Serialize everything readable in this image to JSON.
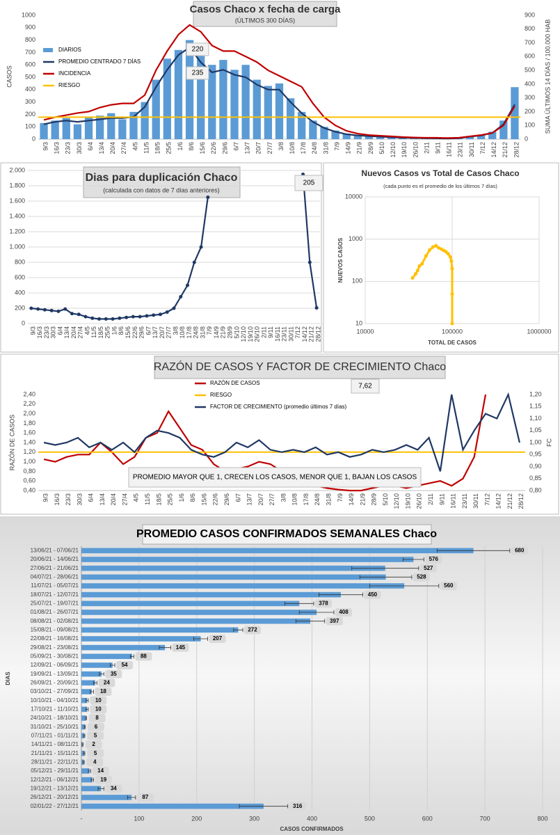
{
  "chart_data": [
    {
      "type": "bar",
      "title": "Casos  Chaco  x fecha de carga",
      "subtitle": "(ÚLTIMOS 300 DÍAS)",
      "y_label": "CASOS",
      "y2_label": "SUMA  ÚLTIMOS 14 DÍAS / 100.000 HAB",
      "categories": [
        "9/3",
        "16/3",
        "23/3",
        "30/3",
        "6/4",
        "13/4",
        "20/4",
        "27/4",
        "4/5",
        "11/5",
        "18/5",
        "25/5",
        "1/6",
        "8/6",
        "15/6",
        "22/6",
        "29/6",
        "6/7",
        "13/7",
        "20/7",
        "27/7",
        "3/8",
        "10/8",
        "17/8",
        "24/8",
        "31/8",
        "7/9",
        "14/9",
        "21/9",
        "28/9",
        "5/10",
        "12/10",
        "19/10",
        "26/10",
        "2/11",
        "9/11",
        "16/11",
        "23/11",
        "30/11",
        "7/12",
        "14/12",
        "21/12",
        "28/12"
      ],
      "series": [
        {
          "name": "DIARIOS",
          "color": "#5b9bd5",
          "type": "bar",
          "values": [
            130,
            150,
            170,
            120,
            180,
            190,
            210,
            160,
            220,
            300,
            480,
            650,
            720,
            800,
            680,
            600,
            640,
            560,
            600,
            480,
            430,
            450,
            330,
            220,
            150,
            100,
            70,
            45,
            35,
            28,
            22,
            18,
            14,
            12,
            9,
            7,
            6,
            10,
            25,
            35,
            60,
            150,
            420
          ]
        },
        {
          "name": "PROMEDIO CENTRADO 7 DÍAS",
          "color": "#1f3864",
          "type": "line",
          "values": [
            120,
            140,
            150,
            140,
            150,
            160,
            170,
            170,
            180,
            260,
            420,
            560,
            680,
            740,
            620,
            540,
            560,
            520,
            500,
            440,
            400,
            400,
            300,
            210,
            140,
            90,
            60,
            40,
            30,
            25,
            20,
            15,
            12,
            10,
            8,
            6,
            5,
            8,
            20,
            30,
            50,
            120,
            280
          ]
        },
        {
          "name": "INCIDENCIA",
          "color": "#c00000",
          "type": "line",
          "axis": "y2",
          "values": [
            140,
            160,
            175,
            190,
            200,
            230,
            250,
            260,
            260,
            320,
            500,
            640,
            760,
            830,
            780,
            680,
            640,
            640,
            600,
            560,
            500,
            460,
            420,
            380,
            260,
            160,
            100,
            60,
            40,
            30,
            25,
            20,
            15,
            12,
            10,
            10,
            8,
            10,
            20,
            30,
            45,
            100,
            240
          ]
        },
        {
          "name": "RIESGO",
          "color": "#ffc000",
          "type": "hline",
          "axis": "y2",
          "value": 160
        }
      ],
      "annotations": [
        "220",
        "235"
      ],
      "ylim": [
        0,
        1000
      ],
      "yticks": [
        0,
        100,
        200,
        300,
        400,
        500,
        600,
        700,
        800,
        900,
        1000
      ],
      "y2lim": [
        0,
        900
      ],
      "y2ticks": [
        0,
        100,
        200,
        300,
        400,
        500,
        600,
        700,
        800,
        900
      ],
      "grid": false
    },
    {
      "type": "line",
      "title": "Dias para duplicación Chaco",
      "subtitle": "(calculada con datos de 7 días anteriores)",
      "categories": [
        "9/3",
        "16/3",
        "23/3",
        "30/3",
        "6/4",
        "13/4",
        "20/4",
        "27/4",
        "4/5",
        "11/5",
        "18/5",
        "25/5",
        "1/6",
        "8/6",
        "15/6",
        "22/6",
        "29/6",
        "6/7",
        "13/7",
        "20/7",
        "27/7",
        "3/8",
        "10/8",
        "17/8",
        "24/8",
        "31/8",
        "7/9",
        "14/9",
        "21/9",
        "28/9",
        "5/10",
        "12/10",
        "19/10",
        "26/10",
        "2/11",
        "9/11",
        "16/11",
        "23/11",
        "30/11",
        "7/12",
        "14/12",
        "21/12",
        "28/12"
      ],
      "series": [
        {
          "color": "#1f3864",
          "type": "line",
          "markers": true,
          "values": [
            200,
            190,
            180,
            170,
            160,
            190,
            130,
            120,
            90,
            70,
            60,
            60,
            60,
            70,
            80,
            90,
            90,
            100,
            110,
            120,
            150,
            200,
            350,
            500,
            800,
            1000,
            1650,
            null,
            null,
            null,
            null,
            null,
            null,
            null,
            null,
            null,
            null,
            null,
            null,
            null,
            1950,
            800,
            205
          ]
        }
      ],
      "annotations": [
        "205"
      ],
      "ylim": [
        0,
        2000
      ],
      "yticks": [
        0,
        200,
        400,
        600,
        800,
        {
          "value": 1000,
          "label": "1.000"
        },
        {
          "value": 1200,
          "label": "1.200"
        },
        {
          "value": 1400,
          "label": "1.400"
        },
        {
          "value": 1600,
          "label": "1.600"
        },
        {
          "value": 1800,
          "label": "1.800"
        },
        {
          "value": 2000,
          "label": "2.000"
        }
      ],
      "grid": true
    },
    {
      "type": "scatter",
      "title": "Nuevos Casos vs Total de Casos Chaco",
      "subtitle": "(cada punto es el promedio de los últimos 7 días)",
      "x_label": "TOTAL DE CASOS",
      "y_label": "NUEVOS  CASOS",
      "x": [
        35000,
        38000,
        40000,
        42000,
        45000,
        50000,
        55000,
        60000,
        65000,
        70000,
        75000,
        80000,
        85000,
        90000,
        95000,
        98000,
        100000,
        100000,
        100000
      ],
      "values": [
        120,
        150,
        180,
        230,
        260,
        400,
        550,
        650,
        700,
        620,
        580,
        540,
        500,
        450,
        380,
        300,
        200,
        50,
        10
      ],
      "color": "#ffc000",
      "log_x": true,
      "log_y": true,
      "xlim": [
        10000,
        1000000
      ],
      "xticks": [
        10000,
        100000,
        1000000
      ],
      "ylim": [
        10,
        10000
      ],
      "yticks": [
        10,
        100,
        1000,
        10000
      ],
      "grid": true
    },
    {
      "type": "line",
      "title": "RAZÓN DE CASOS Y FACTOR DE CRECIMIENTO Chaco",
      "y_label": "RAZÓN DE CASOS",
      "y2_label": "FC",
      "categories": [
        "9/3",
        "16/3",
        "23/3",
        "30/3",
        "6/4",
        "13/4",
        "20/4",
        "27/4",
        "4/5",
        "11/5",
        "18/5",
        "25/5",
        "1/6",
        "8/6",
        "15/6",
        "22/6",
        "29/6",
        "6/7",
        "13/7",
        "20/7",
        "27/7",
        "3/8",
        "10/8",
        "17/8",
        "24/8",
        "31/8",
        "7/9",
        "14/9",
        "21/9",
        "28/9",
        "5/10",
        "12/10",
        "19/10",
        "26/10",
        "2/11",
        "9/11",
        "16/11",
        "23/11",
        "30/11",
        "7/12",
        "14/12",
        "21/12",
        "28/12"
      ],
      "series": [
        {
          "name": "RAZÓN DE CASOS",
          "color": "#c00000",
          "type": "line",
          "values": [
            1.05,
            1.0,
            1.1,
            1.15,
            1.15,
            1.4,
            1.2,
            0.95,
            1.1,
            1.5,
            1.6,
            2.05,
            1.7,
            1.35,
            1.25,
            0.95,
            0.8,
            0.85,
            0.9,
            1.0,
            0.95,
            0.8,
            0.75,
            0.55,
            0.5,
            0.45,
            0.42,
            0.4,
            0.4,
            0.45,
            0.5,
            0.5,
            0.45,
            0.5,
            0.55,
            0.6,
            0.5,
            0.65,
            1.1,
            2.4,
            null,
            null,
            null
          ]
        },
        {
          "name": "RIESGO",
          "color": "#ffc000",
          "type": "hline",
          "value": 1.2
        },
        {
          "name": "FACTOR DE CRECIMIENTO (promedio últimos 7 días)",
          "color": "#1f3864",
          "type": "line",
          "axis": "y2",
          "values": [
            1.0,
            0.99,
            1.0,
            1.02,
            0.98,
            1.0,
            0.97,
            1.0,
            0.96,
            1.02,
            1.05,
            1.04,
            1.02,
            0.97,
            0.95,
            0.94,
            0.96,
            1.0,
            0.98,
            1.01,
            0.97,
            0.96,
            0.97,
            0.96,
            0.98,
            0.95,
            0.96,
            0.94,
            0.95,
            0.97,
            0.96,
            0.97,
            0.99,
            0.97,
            1.02,
            0.88,
            1.2,
            0.97,
            1.05,
            1.12,
            1.1,
            1.2,
            1.0
          ]
        }
      ],
      "annotations": [
        "7,62",
        "PROMEDIO MAYOR QUE 1, CRECEN LOS CASOS, MENOR QUE 1, BAJAN LOS CASOS"
      ],
      "ylim": [
        0.4,
        2.4
      ],
      "yticks": [
        {
          "value": 0.4,
          "label": "0,40"
        },
        {
          "value": 0.6,
          "label": "0,60"
        },
        {
          "value": 0.8,
          "label": "0,80"
        },
        {
          "value": 1.0,
          "label": "1,00"
        },
        {
          "value": 1.2,
          "label": "1,20"
        },
        {
          "value": 1.4,
          "label": "1,40"
        },
        {
          "value": 1.6,
          "label": "1,60"
        },
        {
          "value": 1.8,
          "label": "1,80"
        },
        {
          "value": 2.0,
          "label": "2,00"
        },
        {
          "value": 2.2,
          "label": "2,20"
        },
        {
          "value": 2.4,
          "label": "2,40"
        }
      ],
      "y2lim": [
        0.8,
        1.2
      ],
      "y2ticks": [
        {
          "value": 0.8,
          "label": "0,80"
        },
        {
          "value": 0.85,
          "label": "0,85"
        },
        {
          "value": 0.9,
          "label": "0,90"
        },
        {
          "value": 0.95,
          "label": "0,95"
        },
        {
          "value": 1.0,
          "label": "1,00"
        },
        {
          "value": 1.05,
          "label": "1,05"
        },
        {
          "value": 1.1,
          "label": "1,10"
        },
        {
          "value": 1.15,
          "label": "1,15"
        },
        {
          "value": 1.2,
          "label": "1,20"
        }
      ],
      "grid": false
    },
    {
      "type": "hbar",
      "title": "PROMEDIO CASOS CONFIRMADOS SEMANALES Chaco",
      "x_label": "CASOS CONFIRMADOS",
      "y_label": "DIAS",
      "color": "#5b9bd5",
      "categories": [
        "13/06/21 - 07/06/21",
        "20/06/21 - 14/06/21",
        "27/06/21 - 21/06/21",
        "04/07/21 - 28/06/21",
        "11/07/21 - 05/07/21",
        "18/07/21 - 12/07/21",
        "25/07/21 - 19/07/21",
        "01/08/21 - 26/07/21",
        "08/08/21 - 02/08/21",
        "15/08/21 - 09/08/21",
        "22/08/21 - 16/08/21",
        "29/08/21 - 23/08/21",
        "05/09/21 - 30/08/21",
        "12/09/21 - 06/09/21",
        "19/09/21 - 13/09/21",
        "26/09/21 - 20/09/21",
        "03/10/21 - 27/09/21",
        "10/10/21 - 04/10/21",
        "17/10/21 - 11/10/21",
        "24/10/21 - 18/10/21",
        "31/10/21 - 25/10/21",
        "07/11/21 - 01/11/21",
        "14/11/21 - 08/11/21",
        "21/11/21 - 15/11/21",
        "28/11/21 - 22/11/21",
        "05/12/21 - 29/11/21",
        "12/12/21 - 06/12/21",
        "19/12/21 - 13/12/21",
        "26/12/21 - 20/12/21",
        "02/01/22 - 27/12/21"
      ],
      "values": [
        680,
        576,
        527,
        528,
        560,
        450,
        378,
        408,
        397,
        272,
        207,
        145,
        88,
        54,
        35,
        24,
        18,
        10,
        10,
        8,
        6,
        5,
        2,
        5,
        4,
        14,
        19,
        34,
        87,
        316
      ],
      "errors": [
        63,
        18,
        58,
        45,
        60,
        38,
        25,
        30,
        25,
        8,
        12,
        10,
        3,
        4,
        4,
        3,
        3,
        2,
        2,
        1,
        1,
        1,
        1,
        1,
        1,
        2,
        2,
        5,
        7,
        42
      ],
      "xlim": [
        0,
        800
      ],
      "xticks": [
        {
          "value": 0,
          "label": "-"
        },
        100,
        200,
        300,
        400,
        500,
        600,
        700,
        800
      ],
      "grid": true
    }
  ]
}
